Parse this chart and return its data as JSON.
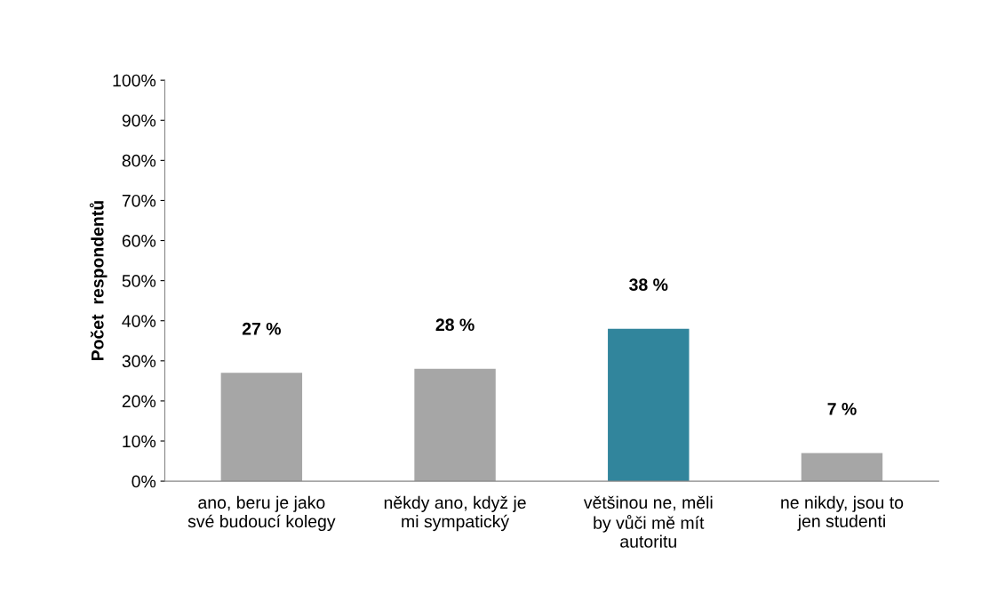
{
  "chart_data": {
    "type": "bar",
    "ylabel": "Počet  respondentů",
    "categories": [
      "ano, beru je jako své budoucí kolegy",
      "někdy ano, když je mi sympatický",
      "většinou ne, měli by vůči mě mít autoritu",
      "ne nikdy, jsou to jen studenti"
    ],
    "values": [
      27,
      28,
      38,
      7
    ],
    "colors": [
      "#a6a6a6",
      "#a6a6a6",
      "#31859c",
      "#a6a6a6"
    ],
    "value_labels": [
      "27 %",
      "28 %",
      "38 %",
      "7 %"
    ],
    "ylim": [
      0,
      100
    ],
    "yticks": [
      {
        "value": 0,
        "label": "0%"
      },
      {
        "value": 10,
        "label": "10%"
      },
      {
        "value": 20,
        "label": "20%"
      },
      {
        "value": 30,
        "label": "30%"
      },
      {
        "value": 40,
        "label": "40%"
      },
      {
        "value": 50,
        "label": "50%"
      },
      {
        "value": 60,
        "label": "60%"
      },
      {
        "value": 70,
        "label": "70%"
      },
      {
        "value": 80,
        "label": "80%"
      },
      {
        "value": 90,
        "label": "90%"
      },
      {
        "value": 100,
        "label": "100%"
      }
    ],
    "grid": false,
    "legend": false
  }
}
